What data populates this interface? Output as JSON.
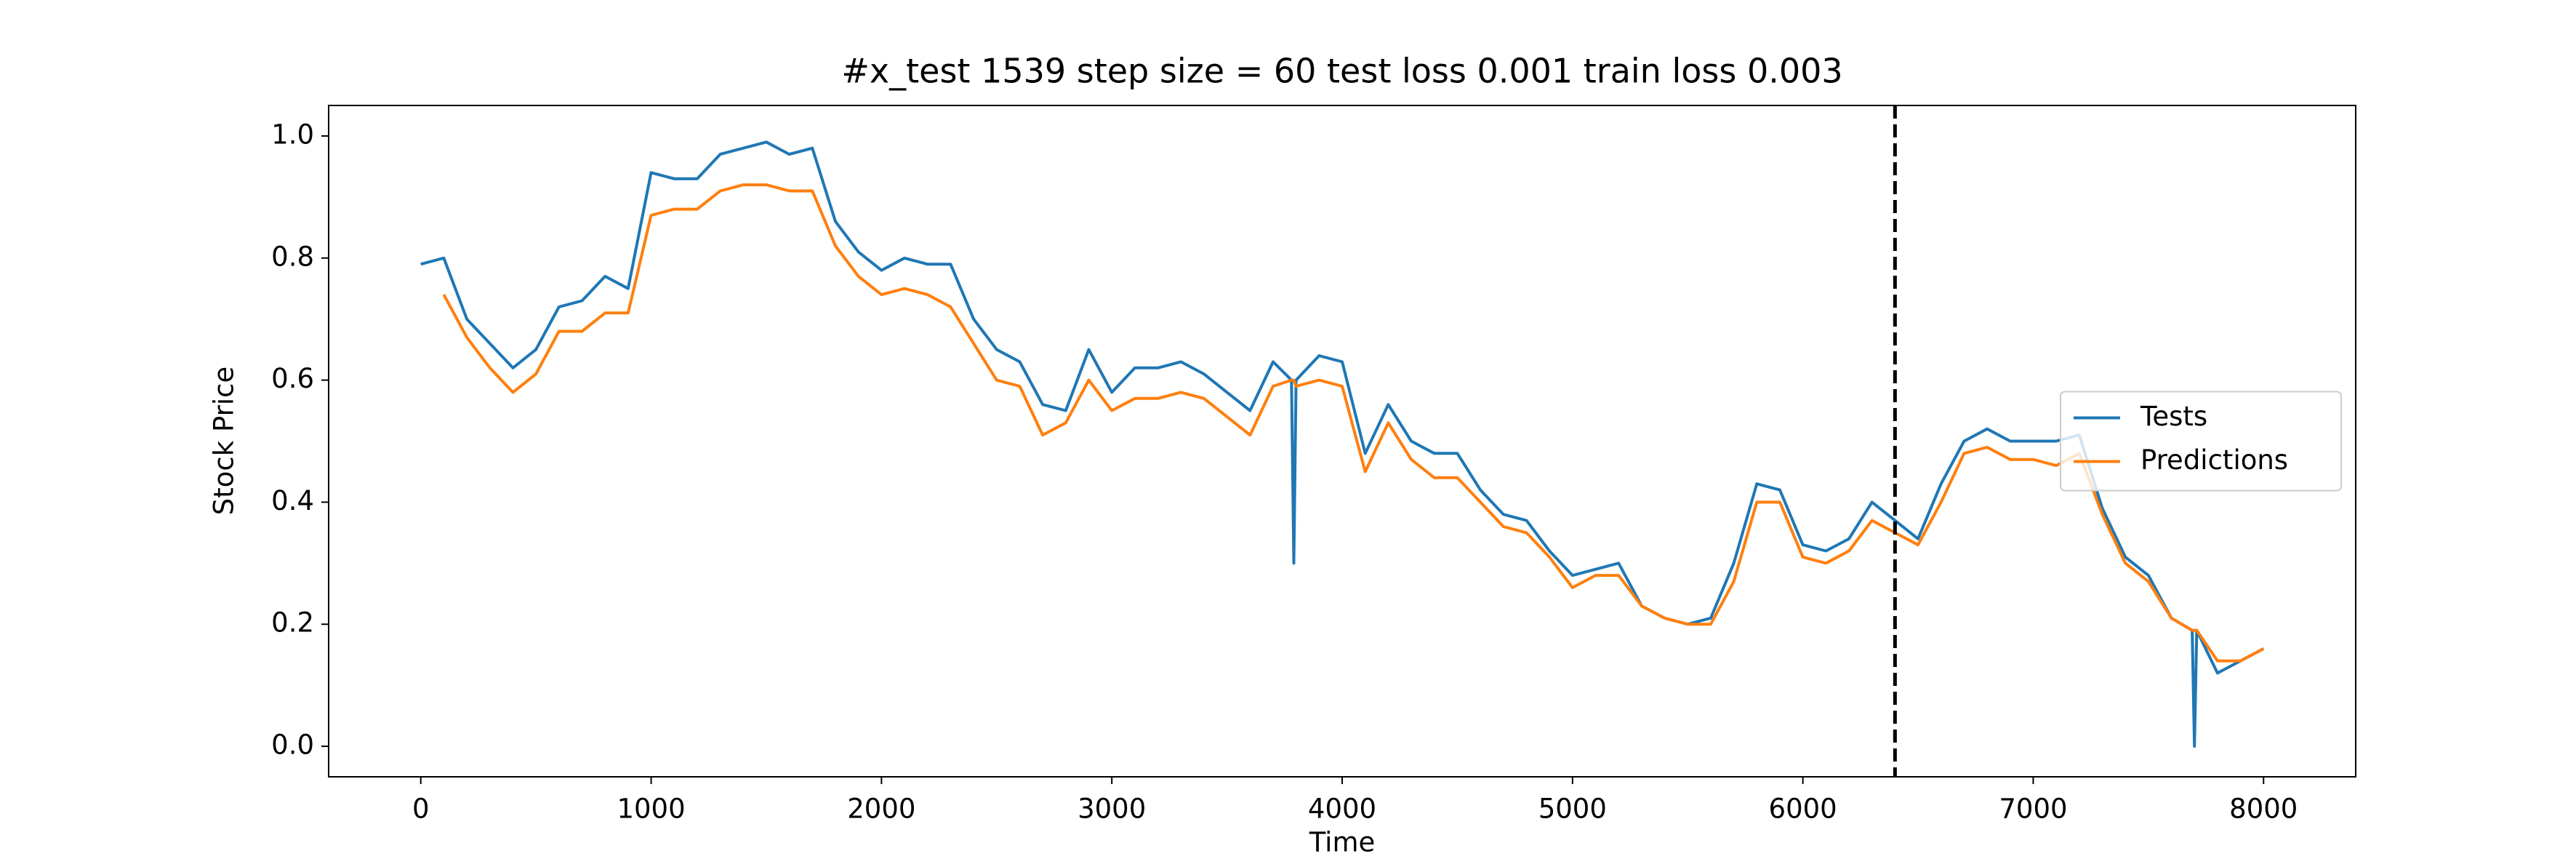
{
  "chart_data": {
    "type": "line",
    "title": "#x_test 1539 step size = 60 test loss 0.001 train loss 0.003",
    "xlabel": "Time",
    "ylabel": "Stock Price",
    "x": [
      0,
      100,
      200,
      300,
      400,
      500,
      600,
      700,
      800,
      900,
      1000,
      1100,
      1200,
      1300,
      1400,
      1500,
      1600,
      1700,
      1800,
      1900,
      2000,
      2100,
      2200,
      2300,
      2400,
      2500,
      2600,
      2700,
      2800,
      2900,
      3000,
      3100,
      3200,
      3300,
      3400,
      3500,
      3600,
      3700,
      3780,
      3790,
      3800,
      3900,
      4000,
      4100,
      4200,
      4300,
      4400,
      4500,
      4600,
      4700,
      4800,
      4900,
      5000,
      5100,
      5200,
      5300,
      5400,
      5500,
      5600,
      5700,
      5800,
      5900,
      6000,
      6100,
      6200,
      6300,
      6400,
      6500,
      6600,
      6700,
      6800,
      6900,
      7000,
      7100,
      7200,
      7300,
      7400,
      7500,
      7600,
      7690,
      7700,
      7710,
      7800,
      7900,
      8000
    ],
    "series": [
      {
        "name": "Tests",
        "color": "#1f77b4",
        "values": [
          0.79,
          0.8,
          0.7,
          0.66,
          0.62,
          0.65,
          0.72,
          0.73,
          0.77,
          0.75,
          0.94,
          0.93,
          0.93,
          0.97,
          0.98,
          0.99,
          0.97,
          0.98,
          0.86,
          0.81,
          0.78,
          0.8,
          0.79,
          0.79,
          0.7,
          0.65,
          0.63,
          0.56,
          0.55,
          0.65,
          0.58,
          0.62,
          0.62,
          0.63,
          0.61,
          0.58,
          0.55,
          0.63,
          0.6,
          0.3,
          0.6,
          0.64,
          0.63,
          0.48,
          0.56,
          0.5,
          0.48,
          0.48,
          0.42,
          0.38,
          0.37,
          0.32,
          0.28,
          0.29,
          0.3,
          0.23,
          0.21,
          0.2,
          0.21,
          0.3,
          0.43,
          0.42,
          0.33,
          0.32,
          0.34,
          0.4,
          0.37,
          0.34,
          0.43,
          0.5,
          0.52,
          0.5,
          0.5,
          0.5,
          0.51,
          0.39,
          0.31,
          0.28,
          0.21,
          0.19,
          0.0,
          0.19,
          0.12,
          0.14,
          0.16
        ]
      },
      {
        "name": "Predictions",
        "color": "#ff7f0e",
        "values": [
          null,
          0.74,
          0.67,
          0.62,
          0.58,
          0.61,
          0.68,
          0.68,
          0.71,
          0.71,
          0.87,
          0.88,
          0.88,
          0.91,
          0.92,
          0.92,
          0.91,
          0.91,
          0.82,
          0.77,
          0.74,
          0.75,
          0.74,
          0.72,
          0.66,
          0.6,
          0.59,
          0.51,
          0.53,
          0.6,
          0.55,
          0.57,
          0.57,
          0.58,
          0.57,
          0.54,
          0.51,
          0.59,
          0.6,
          0.6,
          0.59,
          0.6,
          0.59,
          0.45,
          0.53,
          0.47,
          0.44,
          0.44,
          0.4,
          0.36,
          0.35,
          0.31,
          0.26,
          0.28,
          0.28,
          0.23,
          0.21,
          0.2,
          0.2,
          0.27,
          0.4,
          0.4,
          0.31,
          0.3,
          0.32,
          0.37,
          0.35,
          0.33,
          0.4,
          0.48,
          0.49,
          0.47,
          0.47,
          0.46,
          0.48,
          0.38,
          0.3,
          0.27,
          0.21,
          0.19,
          0.19,
          0.19,
          0.14,
          0.14,
          0.16
        ]
      }
    ],
    "vline_x": 6400,
    "xlim": [
      -400,
      8400
    ],
    "xticks": [
      0,
      1000,
      2000,
      3000,
      4000,
      5000,
      6000,
      7000,
      8000
    ],
    "ylim": [
      -0.05,
      1.05
    ],
    "yticks": [
      {
        "value": 0,
        "label": "0.0"
      },
      0.2,
      0.4,
      0.6,
      0.8,
      {
        "value": 1,
        "label": "1.0"
      }
    ],
    "legend": "center right"
  }
}
